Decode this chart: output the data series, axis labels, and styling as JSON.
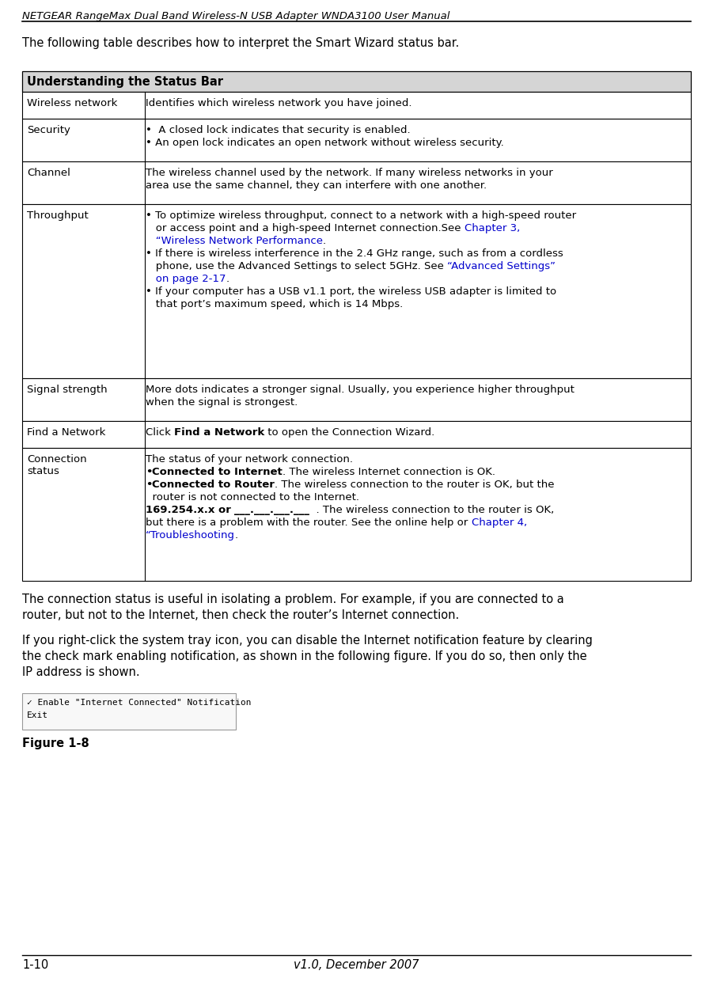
{
  "header_title": "NETGEAR RangeMax Dual Band Wireless-N USB Adapter WNDA3100 User Manual",
  "footer_left": "1-10",
  "footer_center": "v1.0, December 2007",
  "intro_text": "The following table describes how to interpret the Smart Wizard status bar.",
  "table_header": "Understanding the Status Bar",
  "table_header_bg": "#d5d5d5",
  "bg_color": "#ffffff",
  "text_color": "#000000",
  "link_color": "#0000cc",
  "post_table_text1": "The connection status is useful in isolating a problem. For example, if you are connected to a router, but not to the Internet, then check the router’s Internet connection.",
  "post_table_text1_lines": [
    "The connection status is useful in isolating a problem. For example, if you are connected to a",
    "router, but not to the Internet, then check the router’s Internet connection."
  ],
  "post_table_text2_lines": [
    "If you right-click the system tray icon, you can disable the Internet notification feature by clearing",
    "the check mark enabling notification, as shown in the following figure. If you do so, then only the",
    "IP address is shown."
  ],
  "figure_label": "Figure 1-8",
  "figure_box_line1": "✓ Enable \"Internet Connected\" Notification",
  "figure_box_line2": "Exit"
}
